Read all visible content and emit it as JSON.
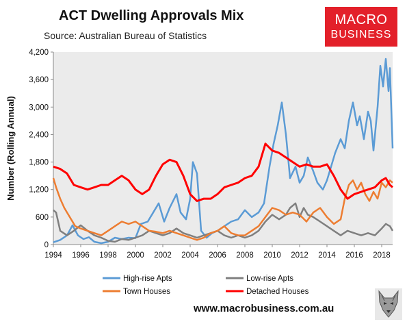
{
  "header": {
    "title": "ACT Dwelling Approvals Mix",
    "subtitle": "Source: Australian Bureau of Statistics",
    "logo_line1": "MACRO",
    "logo_line2": "BUSINESS",
    "footer_url": "www.macrobusiness.com.au"
  },
  "colors": {
    "brand_red": "#e3202a",
    "plot_bg": "#ebebeb",
    "high_rise": "#5b9bd5",
    "low_rise": "#7f7f7f",
    "town_houses": "#ed7d31",
    "detached": "#ff0000"
  },
  "chart_data": {
    "type": "line",
    "ylabel": "Number (Rolling Annual)",
    "xlabel": "",
    "xlim": [
      1994,
      2018.8
    ],
    "ylim": [
      0,
      4200
    ],
    "y_ticks": [
      0,
      600,
      1200,
      1800,
      2400,
      3000,
      3600,
      4200
    ],
    "y_tick_labels": [
      "0",
      "600",
      "1,200",
      "1,800",
      "2,400",
      "3,000",
      "3,600",
      "4,200"
    ],
    "x_ticks": [
      1994,
      1996,
      1998,
      2000,
      2002,
      2004,
      2006,
      2008,
      2010,
      2012,
      2014,
      2016,
      2018
    ],
    "x_tick_labels": [
      "1994",
      "1996",
      "1998",
      "2000",
      "2002",
      "2004",
      "2006",
      "2008",
      "2010",
      "2012",
      "2014",
      "2016",
      "2018"
    ],
    "grid": false,
    "legend_position": "bottom",
    "series": [
      {
        "name": "High-rise Apts",
        "color": "#5b9bd5",
        "points": [
          [
            1994.0,
            50
          ],
          [
            1994.5,
            100
          ],
          [
            1995.0,
            200
          ],
          [
            1995.4,
            420
          ],
          [
            1995.8,
            200
          ],
          [
            1996.2,
            120
          ],
          [
            1996.6,
            160
          ],
          [
            1997.0,
            60
          ],
          [
            1997.5,
            30
          ],
          [
            1998.0,
            60
          ],
          [
            1998.5,
            150
          ],
          [
            1999.0,
            120
          ],
          [
            1999.5,
            150
          ],
          [
            2000.0,
            140
          ],
          [
            2000.4,
            450
          ],
          [
            2000.9,
            500
          ],
          [
            2001.3,
            700
          ],
          [
            2001.7,
            900
          ],
          [
            2002.1,
            500
          ],
          [
            2002.5,
            800
          ],
          [
            2003.0,
            1100
          ],
          [
            2003.3,
            700
          ],
          [
            2003.7,
            550
          ],
          [
            2004.0,
            1000
          ],
          [
            2004.2,
            1800
          ],
          [
            2004.5,
            1550
          ],
          [
            2004.8,
            300
          ],
          [
            2005.2,
            150
          ],
          [
            2005.6,
            250
          ],
          [
            2006.0,
            300
          ],
          [
            2006.5,
            400
          ],
          [
            2007.0,
            500
          ],
          [
            2007.5,
            550
          ],
          [
            2008.0,
            750
          ],
          [
            2008.5,
            600
          ],
          [
            2009.0,
            700
          ],
          [
            2009.4,
            900
          ],
          [
            2009.8,
            1700
          ],
          [
            2010.1,
            2200
          ],
          [
            2010.4,
            2600
          ],
          [
            2010.7,
            3100
          ],
          [
            2011.0,
            2400
          ],
          [
            2011.3,
            1450
          ],
          [
            2011.7,
            1700
          ],
          [
            2012.0,
            1350
          ],
          [
            2012.3,
            1500
          ],
          [
            2012.6,
            1900
          ],
          [
            2013.0,
            1600
          ],
          [
            2013.3,
            1350
          ],
          [
            2013.7,
            1200
          ],
          [
            2014.0,
            1400
          ],
          [
            2014.3,
            1700
          ],
          [
            2014.6,
            2000
          ],
          [
            2015.0,
            2300
          ],
          [
            2015.3,
            2100
          ],
          [
            2015.6,
            2700
          ],
          [
            2015.9,
            3100
          ],
          [
            2016.2,
            2600
          ],
          [
            2016.4,
            2800
          ],
          [
            2016.7,
            2300
          ],
          [
            2017.0,
            2900
          ],
          [
            2017.2,
            2700
          ],
          [
            2017.4,
            2050
          ],
          [
            2017.7,
            3000
          ],
          [
            2017.9,
            3900
          ],
          [
            2018.1,
            3450
          ],
          [
            2018.3,
            4050
          ],
          [
            2018.5,
            3350
          ],
          [
            2018.6,
            3850
          ],
          [
            2018.8,
            2100
          ]
        ]
      },
      {
        "name": "Low-rise Apts",
        "color": "#7f7f7f",
        "points": [
          [
            1994.0,
            750
          ],
          [
            1994.2,
            700
          ],
          [
            1994.5,
            300
          ],
          [
            1995.0,
            200
          ],
          [
            1995.5,
            300
          ],
          [
            1996.0,
            420
          ],
          [
            1996.5,
            300
          ],
          [
            1997.0,
            200
          ],
          [
            1997.5,
            150
          ],
          [
            1998.0,
            80
          ],
          [
            1998.5,
            60
          ],
          [
            1999.0,
            120
          ],
          [
            1999.5,
            100
          ],
          [
            2000.0,
            150
          ],
          [
            2000.5,
            200
          ],
          [
            2001.0,
            300
          ],
          [
            2001.5,
            250
          ],
          [
            2002.0,
            200
          ],
          [
            2002.5,
            250
          ],
          [
            2003.0,
            350
          ],
          [
            2003.5,
            250
          ],
          [
            2004.0,
            200
          ],
          [
            2004.5,
            150
          ],
          [
            2005.0,
            200
          ],
          [
            2005.5,
            250
          ],
          [
            2006.0,
            300
          ],
          [
            2006.5,
            200
          ],
          [
            2007.0,
            150
          ],
          [
            2007.5,
            200
          ],
          [
            2008.0,
            150
          ],
          [
            2008.5,
            200
          ],
          [
            2009.0,
            300
          ],
          [
            2009.5,
            500
          ],
          [
            2010.0,
            650
          ],
          [
            2010.5,
            550
          ],
          [
            2011.0,
            650
          ],
          [
            2011.3,
            800
          ],
          [
            2011.7,
            900
          ],
          [
            2012.0,
            600
          ],
          [
            2012.3,
            800
          ],
          [
            2012.6,
            650
          ],
          [
            2013.0,
            600
          ],
          [
            2013.5,
            500
          ],
          [
            2014.0,
            400
          ],
          [
            2014.5,
            300
          ],
          [
            2015.0,
            200
          ],
          [
            2015.5,
            300
          ],
          [
            2016.0,
            250
          ],
          [
            2016.5,
            200
          ],
          [
            2017.0,
            250
          ],
          [
            2017.5,
            200
          ],
          [
            2018.0,
            350
          ],
          [
            2018.3,
            450
          ],
          [
            2018.6,
            400
          ],
          [
            2018.8,
            300
          ]
        ]
      },
      {
        "name": "Town Houses",
        "color": "#ed7d31",
        "points": [
          [
            1994.0,
            1450
          ],
          [
            1994.2,
            1250
          ],
          [
            1994.5,
            1000
          ],
          [
            1994.8,
            800
          ],
          [
            1995.2,
            600
          ],
          [
            1995.6,
            400
          ],
          [
            1996.0,
            350
          ],
          [
            1996.5,
            300
          ],
          [
            1997.0,
            250
          ],
          [
            1997.5,
            200
          ],
          [
            1998.0,
            300
          ],
          [
            1998.5,
            400
          ],
          [
            1999.0,
            500
          ],
          [
            1999.5,
            450
          ],
          [
            2000.0,
            500
          ],
          [
            2000.5,
            400
          ],
          [
            2001.0,
            300
          ],
          [
            2001.5,
            280
          ],
          [
            2002.0,
            250
          ],
          [
            2002.5,
            300
          ],
          [
            2003.0,
            250
          ],
          [
            2003.5,
            200
          ],
          [
            2004.0,
            150
          ],
          [
            2004.5,
            100
          ],
          [
            2005.0,
            150
          ],
          [
            2005.5,
            250
          ],
          [
            2006.0,
            300
          ],
          [
            2006.5,
            400
          ],
          [
            2007.0,
            250
          ],
          [
            2007.5,
            200
          ],
          [
            2008.0,
            200
          ],
          [
            2008.5,
            300
          ],
          [
            2009.0,
            400
          ],
          [
            2009.5,
            600
          ],
          [
            2010.0,
            800
          ],
          [
            2010.5,
            750
          ],
          [
            2011.0,
            650
          ],
          [
            2011.5,
            700
          ],
          [
            2012.0,
            650
          ],
          [
            2012.5,
            500
          ],
          [
            2013.0,
            700
          ],
          [
            2013.5,
            800
          ],
          [
            2014.0,
            600
          ],
          [
            2014.5,
            450
          ],
          [
            2015.0,
            550
          ],
          [
            2015.3,
            1000
          ],
          [
            2015.6,
            1300
          ],
          [
            2015.9,
            1400
          ],
          [
            2016.2,
            1200
          ],
          [
            2016.5,
            1350
          ],
          [
            2016.8,
            1100
          ],
          [
            2017.1,
            950
          ],
          [
            2017.4,
            1150
          ],
          [
            2017.7,
            1000
          ],
          [
            2018.0,
            1350
          ],
          [
            2018.3,
            1250
          ],
          [
            2018.6,
            1400
          ],
          [
            2018.8,
            1350
          ]
        ]
      },
      {
        "name": "Detached Houses",
        "color": "#ff0000",
        "points": [
          [
            1994.0,
            1700
          ],
          [
            1994.5,
            1650
          ],
          [
            1995.0,
            1550
          ],
          [
            1995.5,
            1300
          ],
          [
            1996.0,
            1250
          ],
          [
            1996.5,
            1200
          ],
          [
            1997.0,
            1250
          ],
          [
            1997.5,
            1300
          ],
          [
            1998.0,
            1300
          ],
          [
            1998.5,
            1400
          ],
          [
            1999.0,
            1500
          ],
          [
            1999.5,
            1400
          ],
          [
            2000.0,
            1200
          ],
          [
            2000.5,
            1100
          ],
          [
            2001.0,
            1200
          ],
          [
            2001.5,
            1500
          ],
          [
            2002.0,
            1750
          ],
          [
            2002.5,
            1850
          ],
          [
            2003.0,
            1800
          ],
          [
            2003.5,
            1500
          ],
          [
            2004.0,
            1100
          ],
          [
            2004.5,
            950
          ],
          [
            2005.0,
            1000
          ],
          [
            2005.5,
            1000
          ],
          [
            2006.0,
            1100
          ],
          [
            2006.5,
            1250
          ],
          [
            2007.0,
            1300
          ],
          [
            2007.5,
            1350
          ],
          [
            2008.0,
            1450
          ],
          [
            2008.5,
            1500
          ],
          [
            2009.0,
            1700
          ],
          [
            2009.5,
            2200
          ],
          [
            2010.0,
            2050
          ],
          [
            2010.5,
            2000
          ],
          [
            2011.0,
            1900
          ],
          [
            2011.5,
            1800
          ],
          [
            2012.0,
            1700
          ],
          [
            2012.5,
            1750
          ],
          [
            2013.0,
            1700
          ],
          [
            2013.5,
            1700
          ],
          [
            2014.0,
            1750
          ],
          [
            2014.5,
            1500
          ],
          [
            2015.0,
            1200
          ],
          [
            2015.5,
            1000
          ],
          [
            2016.0,
            1100
          ],
          [
            2016.5,
            1150
          ],
          [
            2017.0,
            1200
          ],
          [
            2017.5,
            1250
          ],
          [
            2018.0,
            1400
          ],
          [
            2018.3,
            1450
          ],
          [
            2018.6,
            1300
          ],
          [
            2018.8,
            1250
          ]
        ]
      }
    ]
  }
}
